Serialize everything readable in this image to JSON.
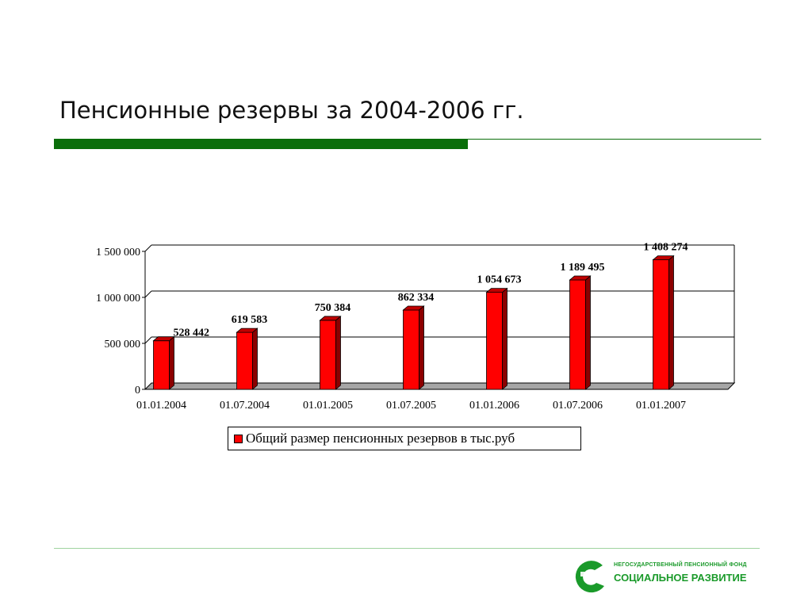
{
  "slide": {
    "title": "Пенсионные резервы за 2004-2006 гг.",
    "accent_color": "#0a6e0a",
    "footer_rule_color": "#9fd39f"
  },
  "logo": {
    "line1": "НЕГОСУДАРСТВЕННЫЙ ПЕНСИОННЫЙ ФОНД",
    "line2": "СОЦИАЛЬНОЕ РАЗВИТИЕ",
    "color": "#1a9a2a"
  },
  "chart_data": {
    "type": "bar",
    "style": "3d-column",
    "categories": [
      "01.01.2004",
      "01.07.2004",
      "01.01.2005",
      "01.07.2005",
      "01.01.2006",
      "01.07.2006",
      "01.01.2007"
    ],
    "series": [
      {
        "name": "Общий размер пенсионных резервов в тыс.руб",
        "values": [
          528442,
          619583,
          750384,
          862334,
          1054673,
          1189495,
          1408274
        ],
        "labels": [
          "528 442",
          "619 583",
          "750 384",
          "862 334",
          "1 054 673",
          "1 189 495",
          "1 408 274"
        ],
        "color": "#ff0000"
      }
    ],
    "ylim": [
      0,
      1500000
    ],
    "yticks": [
      0,
      500000,
      1000000,
      1500000
    ],
    "ytick_labels": [
      "0",
      "500 000",
      "1 000 000",
      "1 500 000"
    ],
    "grid": true,
    "legend_position": "bottom"
  }
}
